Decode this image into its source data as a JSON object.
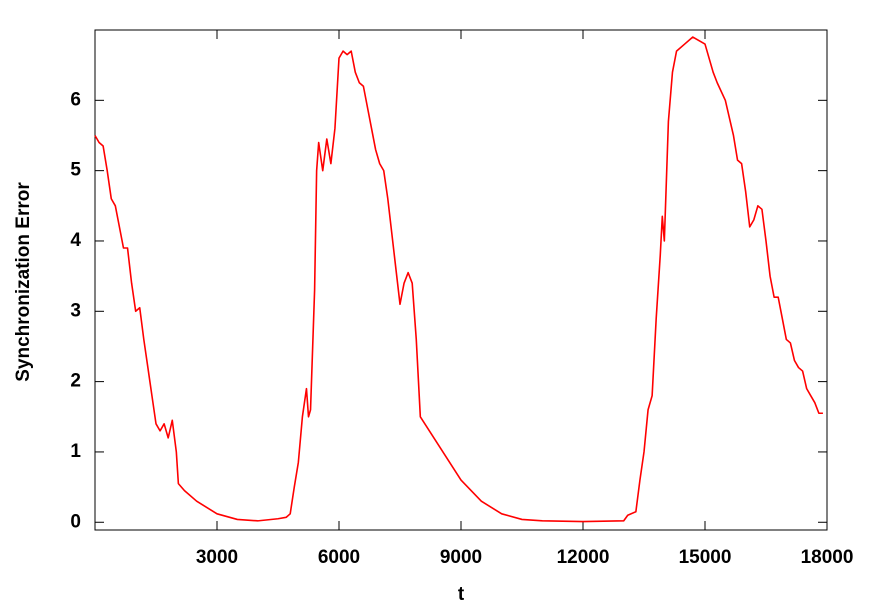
{
  "chart_data": {
    "type": "line",
    "xlabel": "t",
    "ylabel": "Synchronization Error",
    "x": [
      0,
      100,
      200,
      300,
      400,
      500,
      600,
      700,
      800,
      900,
      1000,
      1100,
      1200,
      1300,
      1400,
      1500,
      1600,
      1700,
      1800,
      1900,
      2000,
      2050,
      2200,
      2500,
      3000,
      3500,
      4000,
      4500,
      4700,
      4800,
      4900,
      5000,
      5100,
      5200,
      5250,
      5300,
      5400,
      5450,
      5500,
      5600,
      5700,
      5800,
      5900,
      6000,
      6100,
      6200,
      6300,
      6400,
      6500,
      6600,
      6700,
      6800,
      6900,
      7000,
      7100,
      7200,
      7300,
      7400,
      7500,
      7600,
      7700,
      7800,
      7900,
      8000,
      8500,
      9000,
      9500,
      10000,
      10500,
      11000,
      12000,
      13000,
      13100,
      13300,
      13400,
      13500,
      13600,
      13700,
      13800,
      13900,
      13950,
      14000,
      14100,
      14200,
      14300,
      14500,
      14700,
      15000,
      15200,
      15300,
      15500,
      15700,
      15800,
      15900,
      16000,
      16100,
      16200,
      16300,
      16400,
      16500,
      16600,
      16700,
      16800,
      16900,
      17000,
      17100,
      17200,
      17300,
      17400,
      17500,
      17600,
      17700,
      17800,
      17900
    ],
    "series": [
      {
        "color": "#ff0000",
        "values": [
          5.5,
          5.4,
          5.35,
          5.0,
          4.6,
          4.5,
          4.2,
          3.9,
          3.9,
          3.4,
          3.0,
          3.05,
          2.6,
          2.2,
          1.8,
          1.4,
          1.3,
          1.4,
          1.2,
          1.45,
          1.0,
          0.55,
          0.45,
          0.3,
          0.12,
          0.04,
          0.02,
          0.05,
          0.07,
          0.12,
          0.5,
          0.85,
          1.5,
          1.9,
          1.5,
          1.6,
          3.3,
          5.0,
          5.4,
          5.0,
          5.45,
          5.1,
          5.6,
          6.6,
          6.7,
          6.65,
          6.7,
          6.4,
          6.25,
          6.2,
          5.9,
          5.6,
          5.3,
          5.1,
          5.0,
          4.6,
          4.1,
          3.6,
          3.1,
          3.4,
          3.55,
          3.4,
          2.6,
          1.5,
          1.05,
          0.6,
          0.3,
          0.12,
          0.04,
          0.02,
          0.01,
          0.02,
          0.1,
          0.15,
          0.6,
          1.0,
          1.6,
          1.8,
          2.9,
          3.8,
          4.35,
          4.0,
          5.7,
          6.4,
          6.7,
          6.8,
          6.9,
          6.8,
          6.4,
          6.25,
          6.0,
          5.5,
          5.15,
          5.1,
          4.7,
          4.2,
          4.3,
          4.5,
          4.45,
          4.0,
          3.5,
          3.2,
          3.2,
          2.9,
          2.6,
          2.55,
          2.3,
          2.2,
          2.15,
          1.9,
          1.8,
          1.7,
          1.55,
          1.55
        ]
      }
    ],
    "xlim": [
      0,
      18000
    ],
    "ylim": [
      -0.11,
      7
    ],
    "xticks": [
      3000,
      6000,
      9000,
      12000,
      15000,
      18000
    ],
    "yticks": [
      0,
      1,
      2,
      3,
      4,
      5,
      6
    ]
  }
}
